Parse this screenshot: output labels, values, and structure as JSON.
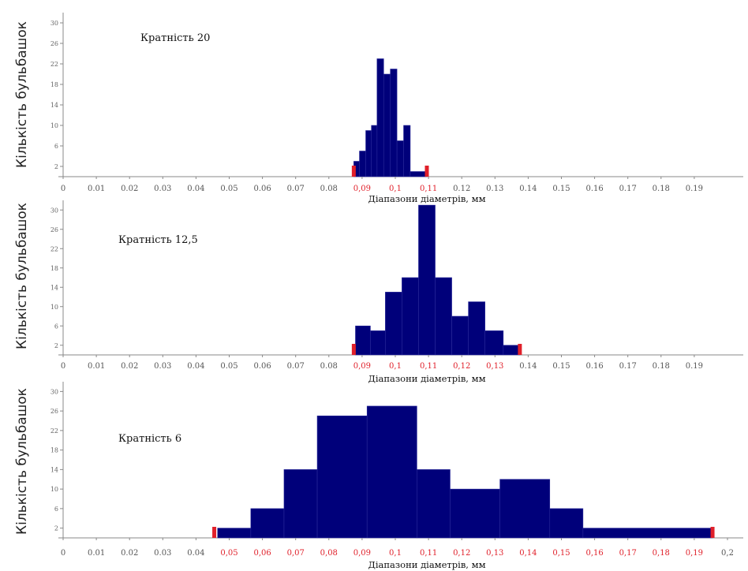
{
  "colors": {
    "bar": "#00007a",
    "bar_edge": "#2a2a9a",
    "range_marker": "#e0202a",
    "axis": "#888888"
  },
  "chart_data": [
    {
      "type": "bar",
      "title": "Кратність 20",
      "xlabel": "Діапазони діаметрів, мм",
      "ylabel": "Кількість бульбашок",
      "xlim": [
        0,
        0.2
      ],
      "ylim": [
        0,
        32
      ],
      "x_ticks": [
        "0",
        "0.01",
        "0.02",
        "0.03",
        "0.04",
        "0.05",
        "0.06",
        "0.07",
        "0.08",
        "0,09",
        "0,1",
        "0,11",
        "0.12",
        "0.13",
        "0.14",
        "0.15",
        "0.16",
        "0.17",
        "0.18",
        "0.19"
      ],
      "x_tick_values": [
        0,
        0.01,
        0.02,
        0.03,
        0.04,
        0.05,
        0.06,
        0.07,
        0.08,
        0.09,
        0.1,
        0.11,
        0.12,
        0.13,
        0.14,
        0.15,
        0.16,
        0.17,
        0.18,
        0.19
      ],
      "highlighted_ticks": [
        "0,09",
        "0,1",
        "0,11"
      ],
      "y_ticks": [
        "2",
        "6",
        "10",
        "14",
        "18",
        "22",
        "26",
        "30"
      ],
      "range_markers": [
        0.0875,
        0.1095
      ],
      "bins": [
        {
          "x0": 0.0875,
          "x1": 0.0892,
          "value": 3
        },
        {
          "x0": 0.0892,
          "x1": 0.0911,
          "value": 5
        },
        {
          "x0": 0.0911,
          "x1": 0.0928,
          "value": 9
        },
        {
          "x0": 0.0928,
          "x1": 0.0945,
          "value": 10
        },
        {
          "x0": 0.0945,
          "x1": 0.0965,
          "value": 23
        },
        {
          "x0": 0.0965,
          "x1": 0.0985,
          "value": 20
        },
        {
          "x0": 0.0985,
          "x1": 0.1005,
          "value": 21
        },
        {
          "x0": 0.1005,
          "x1": 0.1025,
          "value": 7
        },
        {
          "x0": 0.1025,
          "x1": 0.1045,
          "value": 10
        },
        {
          "x0": 0.1045,
          "x1": 0.1095,
          "value": 1
        }
      ]
    },
    {
      "type": "bar",
      "title": "Кратність 12,5",
      "xlabel": "Діапазони діаметрів, мм",
      "ylabel": "Кількість бульбашок",
      "xlim": [
        0,
        0.2
      ],
      "ylim": [
        0,
        32
      ],
      "x_ticks": [
        "0",
        "0.01",
        "0.02",
        "0.03",
        "0.04",
        "0.05",
        "0.06",
        "0.07",
        "0.08",
        "0,09",
        "0,1",
        "0,11",
        "0,12",
        "0,13",
        "0.14",
        "0.15",
        "0.16",
        "0.17",
        "0.18",
        "0.19"
      ],
      "x_tick_values": [
        0,
        0.01,
        0.02,
        0.03,
        0.04,
        0.05,
        0.06,
        0.07,
        0.08,
        0.09,
        0.1,
        0.11,
        0.12,
        0.13,
        0.14,
        0.15,
        0.16,
        0.17,
        0.18,
        0.19
      ],
      "highlighted_ticks": [
        "0,09",
        "0,1",
        "0,11",
        "0,12",
        "0,13"
      ],
      "y_ticks": [
        "2",
        "6",
        "10",
        "14",
        "18",
        "22",
        "26",
        "30"
      ],
      "range_markers": [
        0.0875,
        0.1375
      ],
      "bins": [
        {
          "x0": 0.088,
          "x1": 0.0925,
          "value": 6
        },
        {
          "x0": 0.0925,
          "x1": 0.097,
          "value": 5
        },
        {
          "x0": 0.097,
          "x1": 0.102,
          "value": 13
        },
        {
          "x0": 0.102,
          "x1": 0.107,
          "value": 16
        },
        {
          "x0": 0.107,
          "x1": 0.112,
          "value": 31
        },
        {
          "x0": 0.112,
          "x1": 0.117,
          "value": 16
        },
        {
          "x0": 0.117,
          "x1": 0.122,
          "value": 8
        },
        {
          "x0": 0.122,
          "x1": 0.127,
          "value": 11
        },
        {
          "x0": 0.127,
          "x1": 0.1325,
          "value": 5
        },
        {
          "x0": 0.1325,
          "x1": 0.1375,
          "value": 2
        }
      ]
    },
    {
      "type": "bar",
      "title": "Кратність 6",
      "xlabel": "Діапазони діаметрів, мм",
      "ylabel": "Кількість бульбашок",
      "xlim": [
        0,
        0.2
      ],
      "ylim": [
        0,
        32
      ],
      "x_ticks": [
        "0",
        "0.01",
        "0.02",
        "0.03",
        "0.04",
        "0,05",
        "0,06",
        "0,07",
        "0,08",
        "0,09",
        "0,1",
        "0,11",
        "0,12",
        "0,13",
        "0,14",
        "0,15",
        "0,16",
        "0,17",
        "0,18",
        "0,19",
        "0,2"
      ],
      "x_tick_values": [
        0,
        0.01,
        0.02,
        0.03,
        0.04,
        0.05,
        0.06,
        0.07,
        0.08,
        0.09,
        0.1,
        0.11,
        0.12,
        0.13,
        0.14,
        0.15,
        0.16,
        0.17,
        0.18,
        0.19,
        0.2
      ],
      "highlighted_ticks": [
        "0,05",
        "0,06",
        "0,07",
        "0,08",
        "0,09",
        "0,1",
        "0,11",
        "0,12",
        "0,13",
        "0,14",
        "0,15",
        "0,16",
        "0,17",
        "0,18",
        "0,19"
      ],
      "y_ticks": [
        "2",
        "6",
        "10",
        "14",
        "18",
        "22",
        "26",
        "30"
      ],
      "range_markers": [
        0.0455,
        0.1955
      ],
      "bins": [
        {
          "x0": 0.0465,
          "x1": 0.0565,
          "value": 2
        },
        {
          "x0": 0.0565,
          "x1": 0.0665,
          "value": 6
        },
        {
          "x0": 0.0665,
          "x1": 0.0765,
          "value": 14
        },
        {
          "x0": 0.0765,
          "x1": 0.0915,
          "value": 25
        },
        {
          "x0": 0.0915,
          "x1": 0.1065,
          "value": 27
        },
        {
          "x0": 0.1065,
          "x1": 0.1165,
          "value": 14
        },
        {
          "x0": 0.1165,
          "x1": 0.1315,
          "value": 10
        },
        {
          "x0": 0.1315,
          "x1": 0.1465,
          "value": 12
        },
        {
          "x0": 0.1465,
          "x1": 0.1565,
          "value": 6
        },
        {
          "x0": 0.1565,
          "x1": 0.1955,
          "value": 2
        }
      ]
    }
  ]
}
